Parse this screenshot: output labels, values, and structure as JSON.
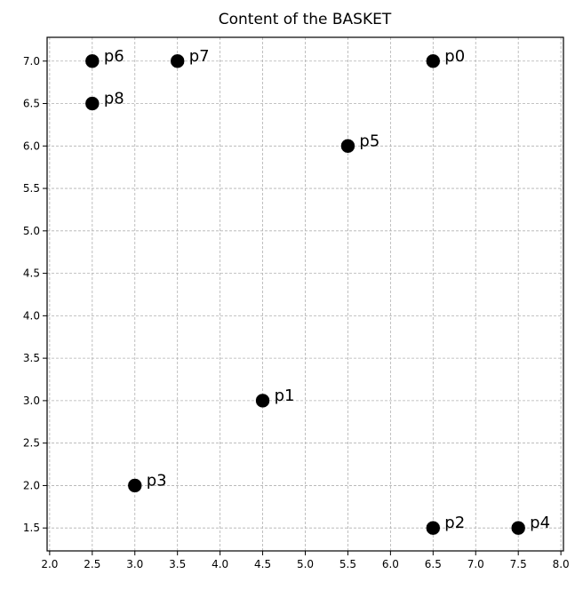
{
  "chart_data": {
    "type": "scatter",
    "title": "Content of the BASKET",
    "xlabel": "",
    "ylabel": "",
    "xlim": [
      1.97,
      8.03
    ],
    "ylim": [
      1.23,
      7.28
    ],
    "xticks": [
      "2.0",
      "2.5",
      "3.0",
      "3.5",
      "4.0",
      "4.5",
      "5.0",
      "5.5",
      "6.0",
      "6.5",
      "7.0",
      "7.5",
      "8.0"
    ],
    "yticks": [
      "1.5",
      "2.0",
      "2.5",
      "3.0",
      "3.5",
      "4.0",
      "4.5",
      "5.0",
      "5.5",
      "6.0",
      "6.5",
      "7.0"
    ],
    "grid": true,
    "point_color": "#000000",
    "points": [
      {
        "label": "p0",
        "x": 6.5,
        "y": 7.0
      },
      {
        "label": "p1",
        "x": 4.5,
        "y": 3.0
      },
      {
        "label": "p2",
        "x": 6.5,
        "y": 1.5
      },
      {
        "label": "p3",
        "x": 3.0,
        "y": 2.0
      },
      {
        "label": "p4",
        "x": 7.5,
        "y": 1.5
      },
      {
        "label": "p5",
        "x": 5.5,
        "y": 6.0
      },
      {
        "label": "p6",
        "x": 2.5,
        "y": 7.0
      },
      {
        "label": "p7",
        "x": 3.5,
        "y": 7.0
      },
      {
        "label": "p8",
        "x": 2.5,
        "y": 6.5
      }
    ]
  }
}
